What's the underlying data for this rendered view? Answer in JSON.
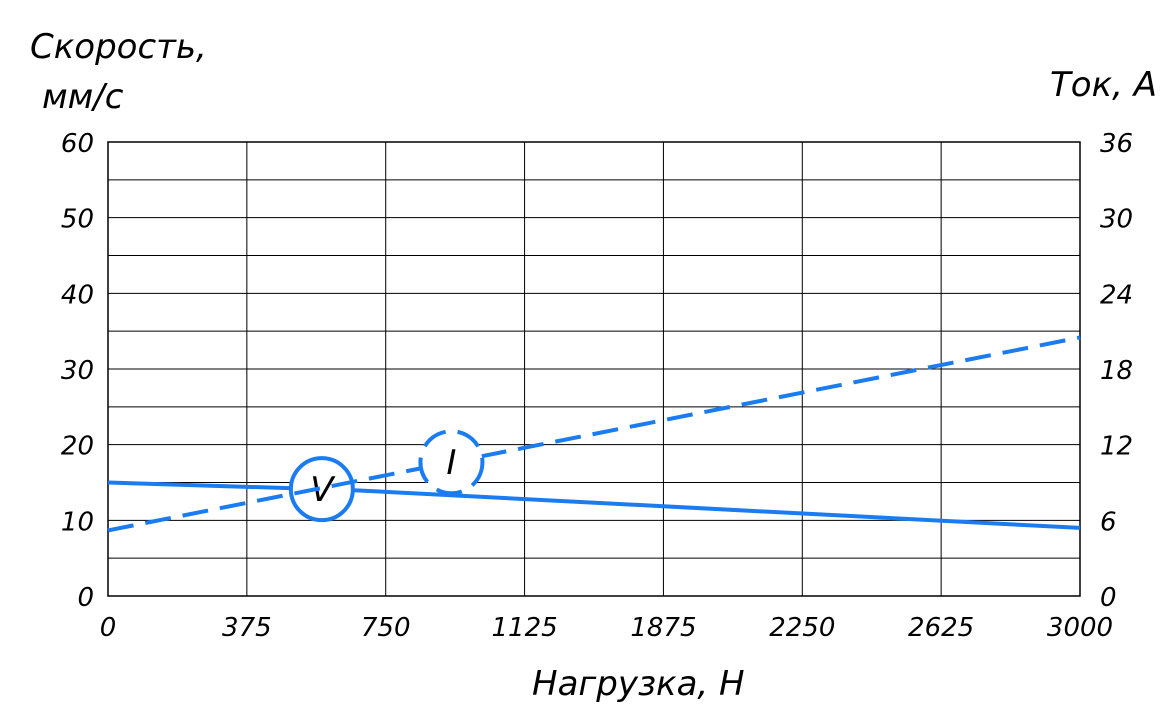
{
  "chart_data": {
    "type": "line",
    "xlabel": "Нагрузка, Н",
    "ylabel_left_line1": "Скорость,",
    "ylabel_left_line2": "мм/с",
    "ylabel_right": "Ток, А",
    "x_tick_labels": [
      "0",
      "375",
      "750",
      "1125",
      "1875",
      "2250",
      "2625",
      "3000"
    ],
    "y_left_ticks": [
      0,
      10,
      20,
      30,
      40,
      50,
      60
    ],
    "y_right_ticks": [
      0,
      6,
      12,
      18,
      24,
      30,
      36
    ],
    "ylim_left": [
      0,
      60
    ],
    "ylim_right": [
      0,
      36
    ],
    "xlim": [
      0,
      3000
    ],
    "grid": true,
    "series": [
      {
        "name": "V",
        "axis": "left",
        "style": "solid",
        "x": [
          0,
          750,
          3000
        ],
        "y": [
          15,
          14,
          9
        ],
        "marker_at_x": 660
      },
      {
        "name": "I",
        "axis": "right",
        "style": "dashed",
        "x": [
          0,
          3000
        ],
        "y": [
          5.2,
          20.5
        ],
        "marker_at_x": 1060
      }
    ],
    "line_color": "#1a7cf0"
  }
}
